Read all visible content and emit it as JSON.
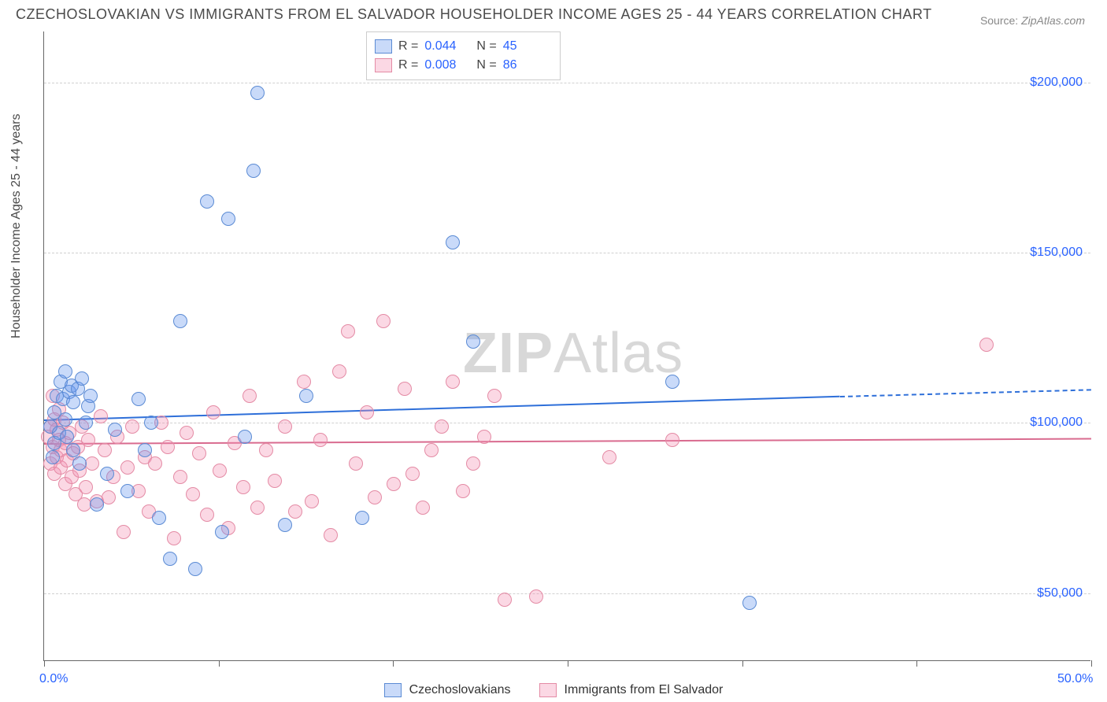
{
  "title": "CZECHOSLOVAKIAN VS IMMIGRANTS FROM EL SALVADOR HOUSEHOLDER INCOME AGES 25 - 44 YEARS CORRELATION CHART",
  "source_label": "Source:",
  "source_value": "ZipAtlas.com",
  "y_axis_title": "Householder Income Ages 25 - 44 years",
  "watermark_bold": "ZIP",
  "watermark_rest": "Atlas",
  "colors": {
    "blue_fill": "rgba(100,149,237,0.35)",
    "blue_stroke": "#5b8bd4",
    "pink_fill": "rgba(244,143,177,0.35)",
    "pink_stroke": "#e48ba5",
    "trend_blue": "#2e6fd9",
    "trend_pink": "#d96b8f",
    "ytick_color": "#2962ff",
    "xtick_color": "#2962ff",
    "grid": "#d8d8d8",
    "title_color": "#4a4a4a"
  },
  "chart": {
    "type": "scatter",
    "xlim": [
      0,
      50
    ],
    "ylim": [
      30000,
      215000
    ],
    "y_ticks": [
      50000,
      100000,
      150000,
      200000
    ],
    "y_tick_labels": [
      "$50,000",
      "$100,000",
      "$150,000",
      "$200,000"
    ],
    "x_ticks_minor": [
      0,
      8.33,
      16.67,
      25,
      33.33,
      41.67,
      50
    ],
    "x_min_label": "0.0%",
    "x_max_label": "50.0%",
    "point_radius": 9,
    "point_stroke_width": 1.2,
    "trend_width": 2.2,
    "series": [
      {
        "name": "Czechoslovakians",
        "color_key": "blue",
        "R": "0.044",
        "N": "45",
        "trend": {
          "x1": 0,
          "y1": 101000,
          "x2": 38,
          "y2": 108000,
          "dash_after_x": 38,
          "x2_dash": 50,
          "y2_dash": 110000
        },
        "points": [
          [
            0.3,
            99000
          ],
          [
            0.4,
            90000
          ],
          [
            0.5,
            103000
          ],
          [
            0.5,
            94000
          ],
          [
            0.6,
            108000
          ],
          [
            0.7,
            97000
          ],
          [
            0.8,
            112000
          ],
          [
            0.9,
            107000
          ],
          [
            1.0,
            101000
          ],
          [
            1.0,
            115000
          ],
          [
            1.1,
            96000
          ],
          [
            1.2,
            109000
          ],
          [
            1.3,
            111000
          ],
          [
            1.4,
            92000
          ],
          [
            1.4,
            106000
          ],
          [
            1.6,
            110000
          ],
          [
            1.7,
            88000
          ],
          [
            1.8,
            113000
          ],
          [
            2.0,
            100000
          ],
          [
            2.1,
            105000
          ],
          [
            2.2,
            108000
          ],
          [
            2.5,
            76000
          ],
          [
            3.0,
            85000
          ],
          [
            3.4,
            98000
          ],
          [
            4.0,
            80000
          ],
          [
            4.5,
            107000
          ],
          [
            4.8,
            92000
          ],
          [
            5.1,
            100000
          ],
          [
            5.5,
            72000
          ],
          [
            6.0,
            60000
          ],
          [
            6.5,
            130000
          ],
          [
            7.2,
            57000
          ],
          [
            7.8,
            165000
          ],
          [
            8.5,
            68000
          ],
          [
            8.8,
            160000
          ],
          [
            9.6,
            96000
          ],
          [
            10.0,
            174000
          ],
          [
            10.2,
            197000
          ],
          [
            11.5,
            70000
          ],
          [
            12.5,
            108000
          ],
          [
            15.2,
            72000
          ],
          [
            19.5,
            153000
          ],
          [
            20.5,
            124000
          ],
          [
            30.0,
            112000
          ],
          [
            33.7,
            47000
          ]
        ]
      },
      {
        "name": "Immigrants from El Salvador",
        "color_key": "pink",
        "R": "0.008",
        "N": "86",
        "trend": {
          "x1": 0,
          "y1": 94000,
          "x2": 50,
          "y2": 95500
        },
        "points": [
          [
            0.2,
            96000
          ],
          [
            0.3,
            99000
          ],
          [
            0.3,
            88000
          ],
          [
            0.4,
            93000
          ],
          [
            0.5,
            101000
          ],
          [
            0.5,
            85000
          ],
          [
            0.6,
            98000
          ],
          [
            0.6,
            90000
          ],
          [
            0.7,
            95000
          ],
          [
            0.7,
            104000
          ],
          [
            0.8,
            87000
          ],
          [
            0.8,
            92000
          ],
          [
            0.9,
            100000
          ],
          [
            1.0,
            94000
          ],
          [
            1.0,
            82000
          ],
          [
            1.1,
            89000
          ],
          [
            1.2,
            97000
          ],
          [
            1.3,
            84000
          ],
          [
            1.4,
            91000
          ],
          [
            1.5,
            79000
          ],
          [
            1.6,
            93000
          ],
          [
            1.7,
            86000
          ],
          [
            1.8,
            99000
          ],
          [
            1.9,
            76000
          ],
          [
            2.0,
            81000
          ],
          [
            2.1,
            95000
          ],
          [
            2.3,
            88000
          ],
          [
            2.5,
            77000
          ],
          [
            2.7,
            102000
          ],
          [
            2.9,
            92000
          ],
          [
            3.1,
            78000
          ],
          [
            3.3,
            84000
          ],
          [
            3.5,
            96000
          ],
          [
            3.8,
            68000
          ],
          [
            4.0,
            87000
          ],
          [
            4.2,
            99000
          ],
          [
            4.5,
            80000
          ],
          [
            4.8,
            90000
          ],
          [
            5.0,
            74000
          ],
          [
            5.3,
            88000
          ],
          [
            5.6,
            100000
          ],
          [
            5.9,
            93000
          ],
          [
            6.2,
            66000
          ],
          [
            6.5,
            84000
          ],
          [
            6.8,
            97000
          ],
          [
            7.1,
            79000
          ],
          [
            7.4,
            91000
          ],
          [
            7.8,
            73000
          ],
          [
            8.1,
            103000
          ],
          [
            8.4,
            86000
          ],
          [
            8.8,
            69000
          ],
          [
            9.1,
            94000
          ],
          [
            9.5,
            81000
          ],
          [
            9.8,
            108000
          ],
          [
            10.2,
            75000
          ],
          [
            10.6,
            92000
          ],
          [
            11.0,
            83000
          ],
          [
            11.5,
            99000
          ],
          [
            12.0,
            74000
          ],
          [
            12.4,
            112000
          ],
          [
            12.8,
            77000
          ],
          [
            13.2,
            95000
          ],
          [
            13.7,
            67000
          ],
          [
            14.1,
            115000
          ],
          [
            14.5,
            127000
          ],
          [
            14.9,
            88000
          ],
          [
            15.4,
            103000
          ],
          [
            15.8,
            78000
          ],
          [
            16.2,
            130000
          ],
          [
            16.7,
            82000
          ],
          [
            17.2,
            110000
          ],
          [
            17.6,
            85000
          ],
          [
            18.1,
            75000
          ],
          [
            18.5,
            92000
          ],
          [
            19.0,
            99000
          ],
          [
            19.5,
            112000
          ],
          [
            20.0,
            80000
          ],
          [
            20.5,
            88000
          ],
          [
            21.0,
            96000
          ],
          [
            21.5,
            108000
          ],
          [
            22.0,
            48000
          ],
          [
            23.5,
            49000
          ],
          [
            27.0,
            90000
          ],
          [
            30.0,
            95000
          ],
          [
            45.0,
            123000
          ],
          [
            0.4,
            108000
          ]
        ]
      }
    ]
  },
  "legend_top": {
    "R_label": "R =",
    "N_label": "N ="
  },
  "legend_bottom_labels": [
    "Czechoslovakians",
    "Immigrants from El Salvador"
  ]
}
